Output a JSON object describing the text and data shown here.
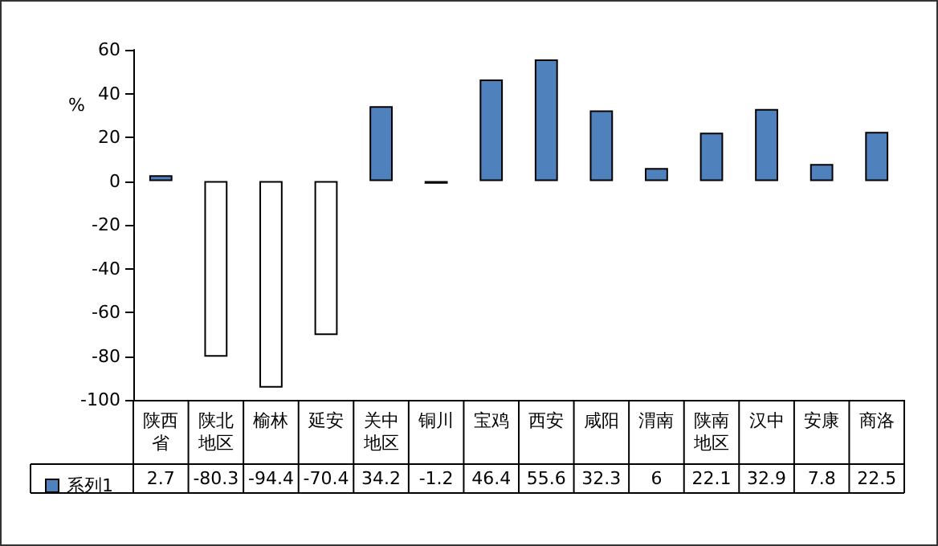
{
  "chart_data": {
    "type": "bar",
    "ylabel": "%",
    "categories": [
      "陕西省",
      "陕北地区",
      "榆林",
      "延安",
      "关中地区",
      "铜川",
      "宝鸡",
      "西安",
      "咸阳",
      "渭南",
      "陕南地区",
      "汉中",
      "安康",
      "商洛"
    ],
    "series": [
      {
        "name": "系列1",
        "color": "#4f81bd",
        "values": [
          2.7,
          -80.3,
          -94.4,
          -70.4,
          34.2,
          -1.2,
          46.4,
          55.6,
          32.3,
          6,
          22.1,
          32.9,
          7.8,
          22.5
        ],
        "colors": [
          "#4f81bd",
          "#ffffff",
          "#ffffff",
          "#ffffff",
          "#4f81bd",
          "#ffffff",
          "#4f81bd",
          "#4f81bd",
          "#4f81bd",
          "#4f81bd",
          "#4f81bd",
          "#4f81bd",
          "#4f81bd",
          "#4f81bd"
        ]
      }
    ],
    "ylim": [
      -100,
      60
    ],
    "yticks": [
      -100,
      -80,
      -60,
      -40,
      -20,
      0,
      20,
      40,
      60
    ],
    "data_labels": true,
    "legend": "bottom left",
    "grid": false
  }
}
